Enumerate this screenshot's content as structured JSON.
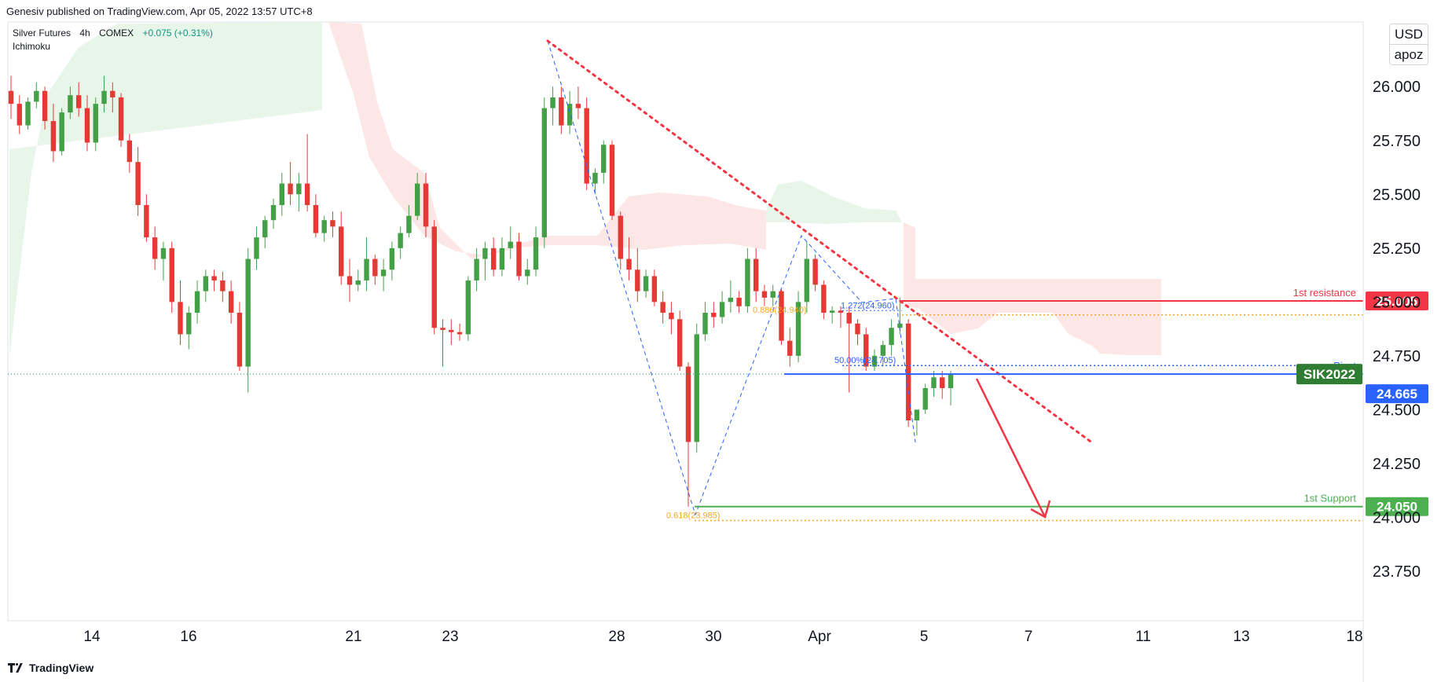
{
  "header": {
    "published": "Genesiv published on TradingView.com, Apr 05, 2022 13:57 UTC+8",
    "symbol": "Silver Futures",
    "timeframe": "4h",
    "exchange": "COMEX",
    "change": "+0.075 (+0.31%)",
    "indicator": "Ichimoku"
  },
  "currency": {
    "unit": "USD",
    "tag": "apoz"
  },
  "footer": {
    "brand": "TradingView"
  },
  "colors": {
    "up": "#43a047",
    "down": "#e53935",
    "cloud_bull": "#e8f5e9",
    "cloud_bear": "#fde6e6",
    "resistance": "#f23645",
    "support": "#4caf50",
    "pivot": "#2962ff",
    "trendline": "#f23645",
    "fib": "#f5a623"
  },
  "chart_data": {
    "type": "candlestick",
    "y_axis": {
      "ticks": [
        23.75,
        24.0,
        24.25,
        24.5,
        24.75,
        25.0,
        25.25,
        25.5,
        25.75,
        26.0
      ],
      "range": [
        23.6,
        26.1
      ]
    },
    "x_axis": {
      "labels": [
        "14",
        "16",
        "21",
        "23",
        "28",
        "30",
        "Apr",
        "5",
        "7",
        "11",
        "13",
        "18"
      ]
    },
    "levels": [
      {
        "name": "1st resistance",
        "value": 25.005,
        "label": "25.005"
      },
      {
        "name": "Pivot",
        "value": 24.665,
        "label": "24.665"
      },
      {
        "name": "1st Support",
        "value": 24.05,
        "label": "24.050"
      }
    ],
    "last_price": {
      "symbol": "SIK2022",
      "value": 24.665,
      "label": "24.665"
    },
    "fib_annotations": [
      {
        "text": "0.618(23.985)",
        "value": 23.985
      },
      {
        "text": "50.00%(24.705)",
        "value": 24.705
      },
      {
        "text": "1.272(24.960)",
        "value": 24.96
      },
      {
        "text": "0.886(24.940)",
        "value": 24.94
      }
    ],
    "candles": [
      [
        25.98,
        26.05,
        25.85,
        25.92
      ],
      [
        25.92,
        25.96,
        25.78,
        25.82
      ],
      [
        25.82,
        25.95,
        25.8,
        25.93
      ],
      [
        25.93,
        26.02,
        25.9,
        25.98
      ],
      [
        25.98,
        26.0,
        25.8,
        25.84
      ],
      [
        25.84,
        25.92,
        25.65,
        25.7
      ],
      [
        25.7,
        25.9,
        25.68,
        25.88
      ],
      [
        25.88,
        26.0,
        25.85,
        25.96
      ],
      [
        25.96,
        26.02,
        25.86,
        25.9
      ],
      [
        25.9,
        25.96,
        25.7,
        25.74
      ],
      [
        25.74,
        25.95,
        25.7,
        25.92
      ],
      [
        25.92,
        26.05,
        25.88,
        25.98
      ],
      [
        25.98,
        26.02,
        25.88,
        25.95
      ],
      [
        25.95,
        25.97,
        25.72,
        25.75
      ],
      [
        25.75,
        25.78,
        25.6,
        25.65
      ],
      [
        25.65,
        25.72,
        25.4,
        25.45
      ],
      [
        25.45,
        25.5,
        25.28,
        25.3
      ],
      [
        25.3,
        25.35,
        25.15,
        25.2
      ],
      [
        25.2,
        25.28,
        25.1,
        25.25
      ],
      [
        25.25,
        25.28,
        24.95,
        25.0
      ],
      [
        25.0,
        25.1,
        24.8,
        24.85
      ],
      [
        24.85,
        24.98,
        24.78,
        24.95
      ],
      [
        24.95,
        25.1,
        24.9,
        25.05
      ],
      [
        25.05,
        25.15,
        25.0,
        25.12
      ],
      [
        25.12,
        25.15,
        25.05,
        25.1
      ],
      [
        25.1,
        25.14,
        25.0,
        25.05
      ],
      [
        25.05,
        25.1,
        24.9,
        24.95
      ],
      [
        24.95,
        25.0,
        24.68,
        24.7
      ],
      [
        24.7,
        25.25,
        24.58,
        25.2
      ],
      [
        25.2,
        25.35,
        25.15,
        25.3
      ],
      [
        25.3,
        25.4,
        25.25,
        25.38
      ],
      [
        25.38,
        25.48,
        25.34,
        25.45
      ],
      [
        25.45,
        25.6,
        25.4,
        25.55
      ],
      [
        25.55,
        25.65,
        25.45,
        25.5
      ],
      [
        25.5,
        25.6,
        25.42,
        25.55
      ],
      [
        25.55,
        25.78,
        25.42,
        25.45
      ],
      [
        25.45,
        25.5,
        25.3,
        25.32
      ],
      [
        25.32,
        25.4,
        25.28,
        25.38
      ],
      [
        25.38,
        25.42,
        25.3,
        25.35
      ],
      [
        25.35,
        25.42,
        25.08,
        25.12
      ],
      [
        25.12,
        25.2,
        25.0,
        25.08
      ],
      [
        25.08,
        25.15,
        25.05,
        25.1
      ],
      [
        25.1,
        25.3,
        25.05,
        25.2
      ],
      [
        25.2,
        25.22,
        25.08,
        25.12
      ],
      [
        25.12,
        25.2,
        25.05,
        25.15
      ],
      [
        25.15,
        25.28,
        25.1,
        25.25
      ],
      [
        25.25,
        25.35,
        25.2,
        25.32
      ],
      [
        25.32,
        25.45,
        25.3,
        25.4
      ],
      [
        25.4,
        25.6,
        25.38,
        25.55
      ],
      [
        25.55,
        25.6,
        25.3,
        25.35
      ],
      [
        25.35,
        25.38,
        24.85,
        24.88
      ],
      [
        24.88,
        24.92,
        24.7,
        24.87
      ],
      [
        24.87,
        24.92,
        24.8,
        24.86
      ],
      [
        24.86,
        24.9,
        24.82,
        24.85
      ],
      [
        24.85,
        25.12,
        24.82,
        25.1
      ],
      [
        25.1,
        25.25,
        25.05,
        25.2
      ],
      [
        25.2,
        25.28,
        25.1,
        25.25
      ],
      [
        25.25,
        25.3,
        25.12,
        25.15
      ],
      [
        25.15,
        25.3,
        25.12,
        25.25
      ],
      [
        25.25,
        25.35,
        25.2,
        25.28
      ],
      [
        25.28,
        25.32,
        25.1,
        25.12
      ],
      [
        25.12,
        25.2,
        25.08,
        25.15
      ],
      [
        25.15,
        25.35,
        25.12,
        25.3
      ],
      [
        25.3,
        25.95,
        25.25,
        25.9
      ],
      [
        25.9,
        26.0,
        25.82,
        25.95
      ],
      [
        25.95,
        26.0,
        25.78,
        25.82
      ],
      [
        25.82,
        25.98,
        25.78,
        25.92
      ],
      [
        25.92,
        26.0,
        25.85,
        25.9
      ],
      [
        25.9,
        25.95,
        25.52,
        25.55
      ],
      [
        25.55,
        25.62,
        25.5,
        25.6
      ],
      [
        25.6,
        25.75,
        25.55,
        25.73
      ],
      [
        25.73,
        25.75,
        25.38,
        25.4
      ],
      [
        25.4,
        25.42,
        25.15,
        25.2
      ],
      [
        25.2,
        25.3,
        25.1,
        25.15
      ],
      [
        25.15,
        25.25,
        25.0,
        25.05
      ],
      [
        25.05,
        25.15,
        25.02,
        25.12
      ],
      [
        25.12,
        25.15,
        24.98,
        25.0
      ],
      [
        25.0,
        25.05,
        24.9,
        24.95
      ],
      [
        24.95,
        25.0,
        24.85,
        24.92
      ],
      [
        24.92,
        24.96,
        24.68,
        24.7
      ],
      [
        24.7,
        24.72,
        24.05,
        24.35
      ],
      [
        24.35,
        24.9,
        24.3,
        24.85
      ],
      [
        24.85,
        25.0,
        24.82,
        24.95
      ],
      [
        24.95,
        25.0,
        24.88,
        24.93
      ],
      [
        24.93,
        25.05,
        24.9,
        25.0
      ],
      [
        25.0,
        25.1,
        24.95,
        25.02
      ],
      [
        25.02,
        25.05,
        24.95,
        24.98
      ],
      [
        24.98,
        25.25,
        24.95,
        25.2
      ],
      [
        25.2,
        25.25,
        25.0,
        25.05
      ],
      [
        25.05,
        25.08,
        24.98,
        25.02
      ],
      [
        25.02,
        25.08,
        24.98,
        25.05
      ],
      [
        25.05,
        25.06,
        24.8,
        24.82
      ],
      [
        24.82,
        24.88,
        24.7,
        24.75
      ],
      [
        24.75,
        25.05,
        24.72,
        25.0
      ],
      [
        25.0,
        25.28,
        24.95,
        25.2
      ],
      [
        25.2,
        25.22,
        25.05,
        25.08
      ],
      [
        25.08,
        25.1,
        24.92,
        24.95
      ],
      [
        24.95,
        24.98,
        24.9,
        24.96
      ],
      [
        24.96,
        24.98,
        24.88,
        24.95
      ],
      [
        24.95,
        24.98,
        24.58,
        24.9
      ],
      [
        24.9,
        24.92,
        24.8,
        24.85
      ],
      [
        24.85,
        24.88,
        24.68,
        24.7
      ],
      [
        24.7,
        24.78,
        24.68,
        24.75
      ],
      [
        24.75,
        24.82,
        24.7,
        24.8
      ],
      [
        24.8,
        24.92,
        24.75,
        24.88
      ],
      [
        24.88,
        25.02,
        24.85,
        24.9
      ],
      [
        24.9,
        24.92,
        24.42,
        24.45
      ],
      [
        24.45,
        24.5,
        24.38,
        24.5
      ],
      [
        24.5,
        24.62,
        24.48,
        24.6
      ],
      [
        24.6,
        24.68,
        24.56,
        24.65
      ],
      [
        24.65,
        24.68,
        24.55,
        24.6
      ],
      [
        24.6,
        24.68,
        24.52,
        24.665
      ]
    ]
  }
}
